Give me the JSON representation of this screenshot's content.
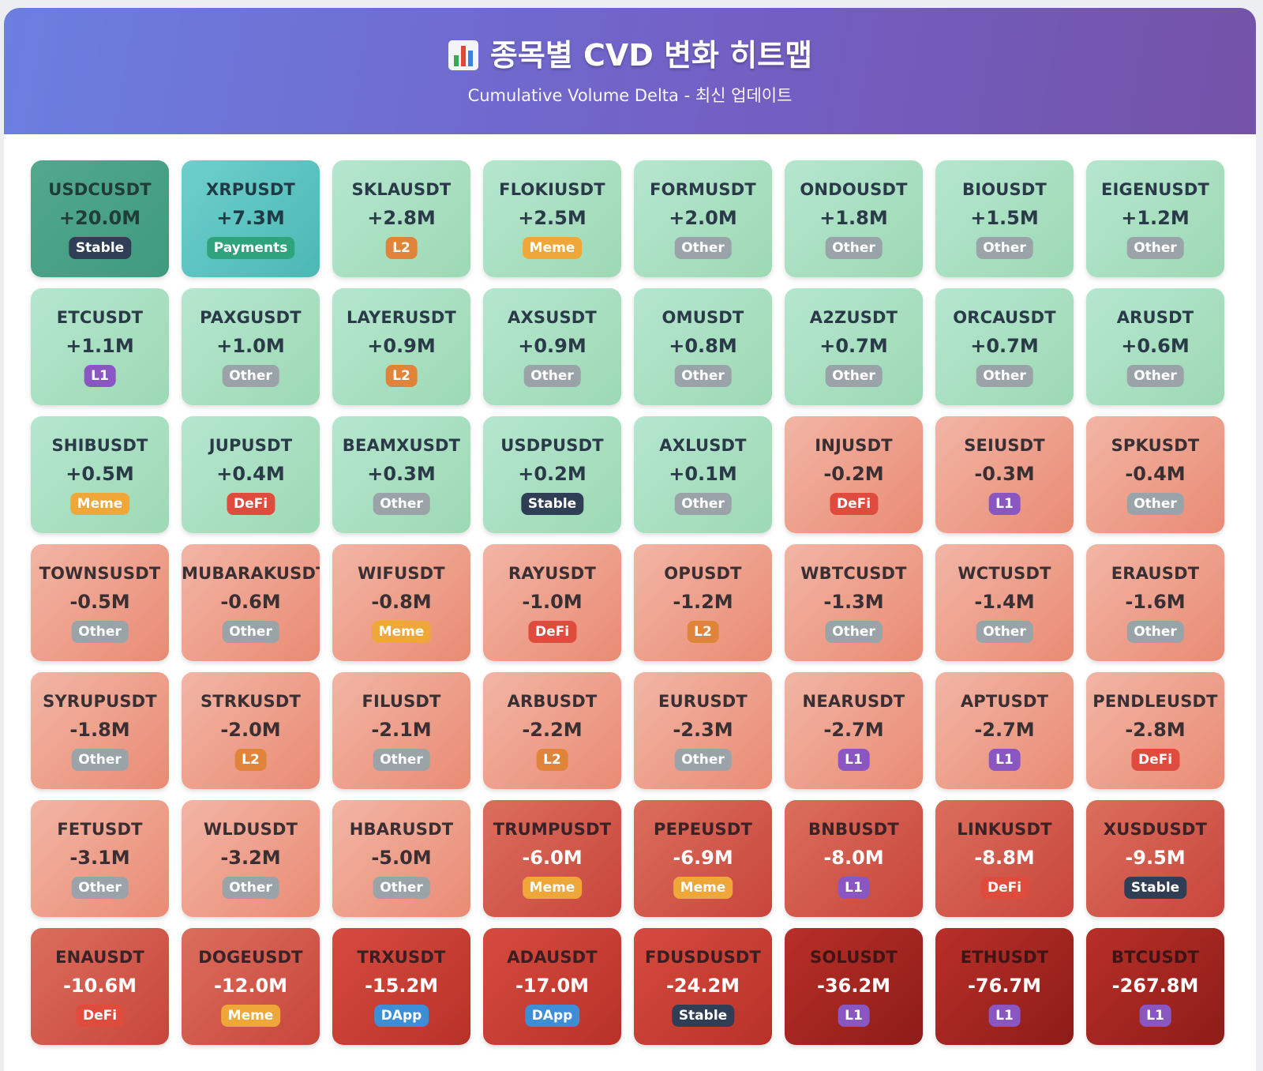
{
  "header": {
    "title": "종목별 CVD 변화 히트맵",
    "subtitle": "Cumulative Volume Delta - 최신 업데이트",
    "icon": "bar-chart-icon"
  },
  "colors": {
    "header_start": "#6b7fe0",
    "header_end": "#7452a8",
    "positive": "#9dd9b4",
    "negative": "#e98b74"
  },
  "tiles": [
    {
      "symbol": "USDCUSDT",
      "cvd": "+20.0M",
      "category": "Stable"
    },
    {
      "symbol": "XRPUSDT",
      "cvd": "+7.3M",
      "category": "Payments"
    },
    {
      "symbol": "SKLAUSDT",
      "cvd": "+2.8M",
      "category": "L2"
    },
    {
      "symbol": "FLOKIUSDT",
      "cvd": "+2.5M",
      "category": "Meme"
    },
    {
      "symbol": "FORMUSDT",
      "cvd": "+2.0M",
      "category": "Other"
    },
    {
      "symbol": "ONDOUSDT",
      "cvd": "+1.8M",
      "category": "Other"
    },
    {
      "symbol": "BIOUSDT",
      "cvd": "+1.5M",
      "category": "Other"
    },
    {
      "symbol": "EIGENUSDT",
      "cvd": "+1.2M",
      "category": "Other"
    },
    {
      "symbol": "ETCUSDT",
      "cvd": "+1.1M",
      "category": "L1"
    },
    {
      "symbol": "PAXGUSDT",
      "cvd": "+1.0M",
      "category": "Other"
    },
    {
      "symbol": "LAYERUSDT",
      "cvd": "+0.9M",
      "category": "L2"
    },
    {
      "symbol": "AXSUSDT",
      "cvd": "+0.9M",
      "category": "Other"
    },
    {
      "symbol": "OMUSDT",
      "cvd": "+0.8M",
      "category": "Other"
    },
    {
      "symbol": "A2ZUSDT",
      "cvd": "+0.7M",
      "category": "Other"
    },
    {
      "symbol": "ORCAUSDT",
      "cvd": "+0.7M",
      "category": "Other"
    },
    {
      "symbol": "ARUSDT",
      "cvd": "+0.6M",
      "category": "Other"
    },
    {
      "symbol": "SHIBUSDT",
      "cvd": "+0.5M",
      "category": "Meme"
    },
    {
      "symbol": "JUPUSDT",
      "cvd": "+0.4M",
      "category": "DeFi"
    },
    {
      "symbol": "BEAMXUSDT",
      "cvd": "+0.3M",
      "category": "Other"
    },
    {
      "symbol": "USDPUSDT",
      "cvd": "+0.2M",
      "category": "Stable"
    },
    {
      "symbol": "AXLUSDT",
      "cvd": "+0.1M",
      "category": "Other"
    },
    {
      "symbol": "INJUSDT",
      "cvd": "-0.2M",
      "category": "DeFi"
    },
    {
      "symbol": "SEIUSDT",
      "cvd": "-0.3M",
      "category": "L1"
    },
    {
      "symbol": "SPKUSDT",
      "cvd": "-0.4M",
      "category": "Other"
    },
    {
      "symbol": "TOWNSUSDT",
      "cvd": "-0.5M",
      "category": "Other"
    },
    {
      "symbol": "MUBARAKUSDT",
      "cvd": "-0.6M",
      "category": "Other"
    },
    {
      "symbol": "WIFUSDT",
      "cvd": "-0.8M",
      "category": "Meme"
    },
    {
      "symbol": "RAYUSDT",
      "cvd": "-1.0M",
      "category": "DeFi"
    },
    {
      "symbol": "OPUSDT",
      "cvd": "-1.2M",
      "category": "L2"
    },
    {
      "symbol": "WBTCUSDT",
      "cvd": "-1.3M",
      "category": "Other"
    },
    {
      "symbol": "WCTUSDT",
      "cvd": "-1.4M",
      "category": "Other"
    },
    {
      "symbol": "ERAUSDT",
      "cvd": "-1.6M",
      "category": "Other"
    },
    {
      "symbol": "SYRUPUSDT",
      "cvd": "-1.8M",
      "category": "Other"
    },
    {
      "symbol": "STRKUSDT",
      "cvd": "-2.0M",
      "category": "L2"
    },
    {
      "symbol": "FILUSDT",
      "cvd": "-2.1M",
      "category": "Other"
    },
    {
      "symbol": "ARBUSDT",
      "cvd": "-2.2M",
      "category": "L2"
    },
    {
      "symbol": "EURUSDT",
      "cvd": "-2.3M",
      "category": "Other"
    },
    {
      "symbol": "NEARUSDT",
      "cvd": "-2.7M",
      "category": "L1"
    },
    {
      "symbol": "APTUSDT",
      "cvd": "-2.7M",
      "category": "L1"
    },
    {
      "symbol": "PENDLEUSDT",
      "cvd": "-2.8M",
      "category": "DeFi"
    },
    {
      "symbol": "FETUSDT",
      "cvd": "-3.1M",
      "category": "Other"
    },
    {
      "symbol": "WLDUSDT",
      "cvd": "-3.2M",
      "category": "Other"
    },
    {
      "symbol": "HBARUSDT",
      "cvd": "-5.0M",
      "category": "Other"
    },
    {
      "symbol": "TRUMPUSDT",
      "cvd": "-6.0M",
      "category": "Meme"
    },
    {
      "symbol": "PEPEUSDT",
      "cvd": "-6.9M",
      "category": "Meme"
    },
    {
      "symbol": "BNBUSDT",
      "cvd": "-8.0M",
      "category": "L1"
    },
    {
      "symbol": "LINKUSDT",
      "cvd": "-8.8M",
      "category": "DeFi"
    },
    {
      "symbol": "XUSDUSDT",
      "cvd": "-9.5M",
      "category": "Stable"
    },
    {
      "symbol": "ENAUSDT",
      "cvd": "-10.6M",
      "category": "DeFi"
    },
    {
      "symbol": "DOGEUSDT",
      "cvd": "-12.0M",
      "category": "Meme"
    },
    {
      "symbol": "TRXUSDT",
      "cvd": "-15.2M",
      "category": "DApp"
    },
    {
      "symbol": "ADAUSDT",
      "cvd": "-17.0M",
      "category": "DApp"
    },
    {
      "symbol": "FDUSDUSDT",
      "cvd": "-24.2M",
      "category": "Stable"
    },
    {
      "symbol": "SOLUSDT",
      "cvd": "-36.2M",
      "category": "L1"
    },
    {
      "symbol": "ETHUSDT",
      "cvd": "-76.7M",
      "category": "L1"
    },
    {
      "symbol": "BTCUSDT",
      "cvd": "-267.8M",
      "category": "L1"
    }
  ]
}
